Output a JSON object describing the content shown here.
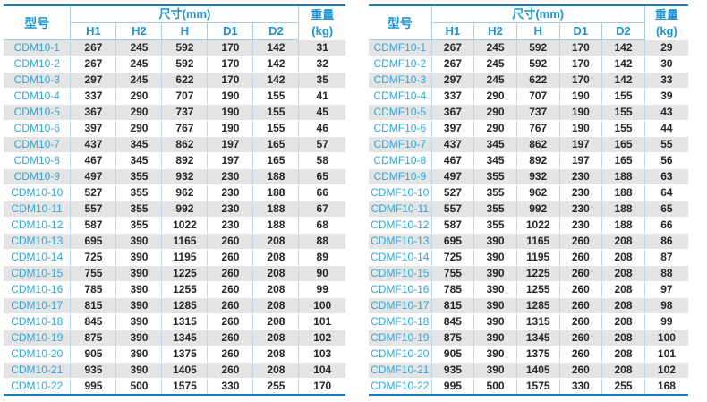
{
  "headers": {
    "model": "型号",
    "dimensions_group": "尺寸(mm)",
    "dims": [
      "H1",
      "H2",
      "H",
      "D1",
      "D2"
    ],
    "weight_line1": "重量",
    "weight_line2": "(kg)"
  },
  "colors": {
    "header_text": "#1e93cf",
    "model_text": "#2fa7d6",
    "value_text": "#262626",
    "stripe_row": "#e4e4e4",
    "border_dark": "#1a7cba",
    "border_light": "#a6cfe7"
  },
  "tables": [
    {
      "series": "CDM10",
      "rows": [
        [
          "CDM10-1",
          267,
          245,
          592,
          170,
          142,
          31
        ],
        [
          "CDM10-2",
          267,
          245,
          592,
          170,
          142,
          32
        ],
        [
          "CDM10-3",
          297,
          245,
          622,
          170,
          142,
          35
        ],
        [
          "CDM10-4",
          337,
          290,
          707,
          190,
          155,
          41
        ],
        [
          "CDM10-5",
          367,
          290,
          737,
          190,
          155,
          45
        ],
        [
          "CDM10-6",
          397,
          290,
          767,
          190,
          155,
          46
        ],
        [
          "CDM10-7",
          437,
          345,
          862,
          197,
          165,
          57
        ],
        [
          "CDM10-8",
          467,
          345,
          892,
          197,
          165,
          58
        ],
        [
          "CDM10-9",
          497,
          355,
          932,
          230,
          188,
          65
        ],
        [
          "CDM10-10",
          527,
          355,
          962,
          230,
          188,
          66
        ],
        [
          "CDM10-11",
          557,
          355,
          992,
          230,
          188,
          67
        ],
        [
          "CDM10-12",
          587,
          355,
          1022,
          230,
          188,
          68
        ],
        [
          "CDM10-13",
          695,
          390,
          1165,
          260,
          208,
          88
        ],
        [
          "CDM10-14",
          725,
          390,
          1195,
          260,
          208,
          89
        ],
        [
          "CDM10-15",
          755,
          390,
          1225,
          260,
          208,
          90
        ],
        [
          "CDM10-16",
          785,
          390,
          1255,
          260,
          208,
          99
        ],
        [
          "CDM10-17",
          815,
          390,
          1285,
          260,
          208,
          100
        ],
        [
          "CDM10-18",
          845,
          390,
          1315,
          260,
          208,
          101
        ],
        [
          "CDM10-19",
          875,
          390,
          1345,
          260,
          208,
          102
        ],
        [
          "CDM10-20",
          905,
          390,
          1375,
          260,
          208,
          103
        ],
        [
          "CDM10-21",
          935,
          390,
          1405,
          260,
          208,
          104
        ],
        [
          "CDM10-22",
          995,
          500,
          1575,
          330,
          255,
          170
        ]
      ]
    },
    {
      "series": "CDMF10",
      "rows": [
        [
          "CDMF10-1",
          267,
          245,
          592,
          170,
          142,
          29
        ],
        [
          "CDMF10-2",
          267,
          245,
          592,
          170,
          142,
          30
        ],
        [
          "CDMF10-3",
          297,
          245,
          622,
          170,
          142,
          33
        ],
        [
          "CDMF10-4",
          337,
          290,
          707,
          190,
          155,
          39
        ],
        [
          "CDMF10-5",
          367,
          290,
          737,
          190,
          155,
          43
        ],
        [
          "CDMF10-6",
          397,
          290,
          767,
          190,
          155,
          44
        ],
        [
          "CDMF10-7",
          437,
          345,
          862,
          197,
          165,
          55
        ],
        [
          "CDMF10-8",
          467,
          345,
          892,
          197,
          165,
          56
        ],
        [
          "CDMF10-9",
          497,
          355,
          932,
          230,
          188,
          63
        ],
        [
          "CDMF10-10",
          527,
          355,
          962,
          230,
          188,
          64
        ],
        [
          "CDMF10-11",
          557,
          355,
          992,
          230,
          188,
          65
        ],
        [
          "CDMF10-12",
          587,
          355,
          1022,
          230,
          188,
          66
        ],
        [
          "CDMF10-13",
          695,
          390,
          1165,
          260,
          208,
          86
        ],
        [
          "CDMF10-14",
          725,
          390,
          1195,
          260,
          208,
          87
        ],
        [
          "CDMF10-15",
          755,
          390,
          1225,
          260,
          208,
          88
        ],
        [
          "CDMF10-16",
          785,
          390,
          1255,
          260,
          208,
          97
        ],
        [
          "CDMF10-17",
          815,
          390,
          1285,
          260,
          208,
          98
        ],
        [
          "CDMF10-18",
          845,
          390,
          1315,
          260,
          208,
          99
        ],
        [
          "CDMF10-19",
          875,
          390,
          1345,
          260,
          208,
          100
        ],
        [
          "CDMF10-20",
          905,
          390,
          1375,
          260,
          208,
          101
        ],
        [
          "CDMF10-21",
          935,
          390,
          1405,
          260,
          208,
          102
        ],
        [
          "CDMF10-22",
          995,
          500,
          1575,
          330,
          255,
          168
        ]
      ]
    }
  ]
}
